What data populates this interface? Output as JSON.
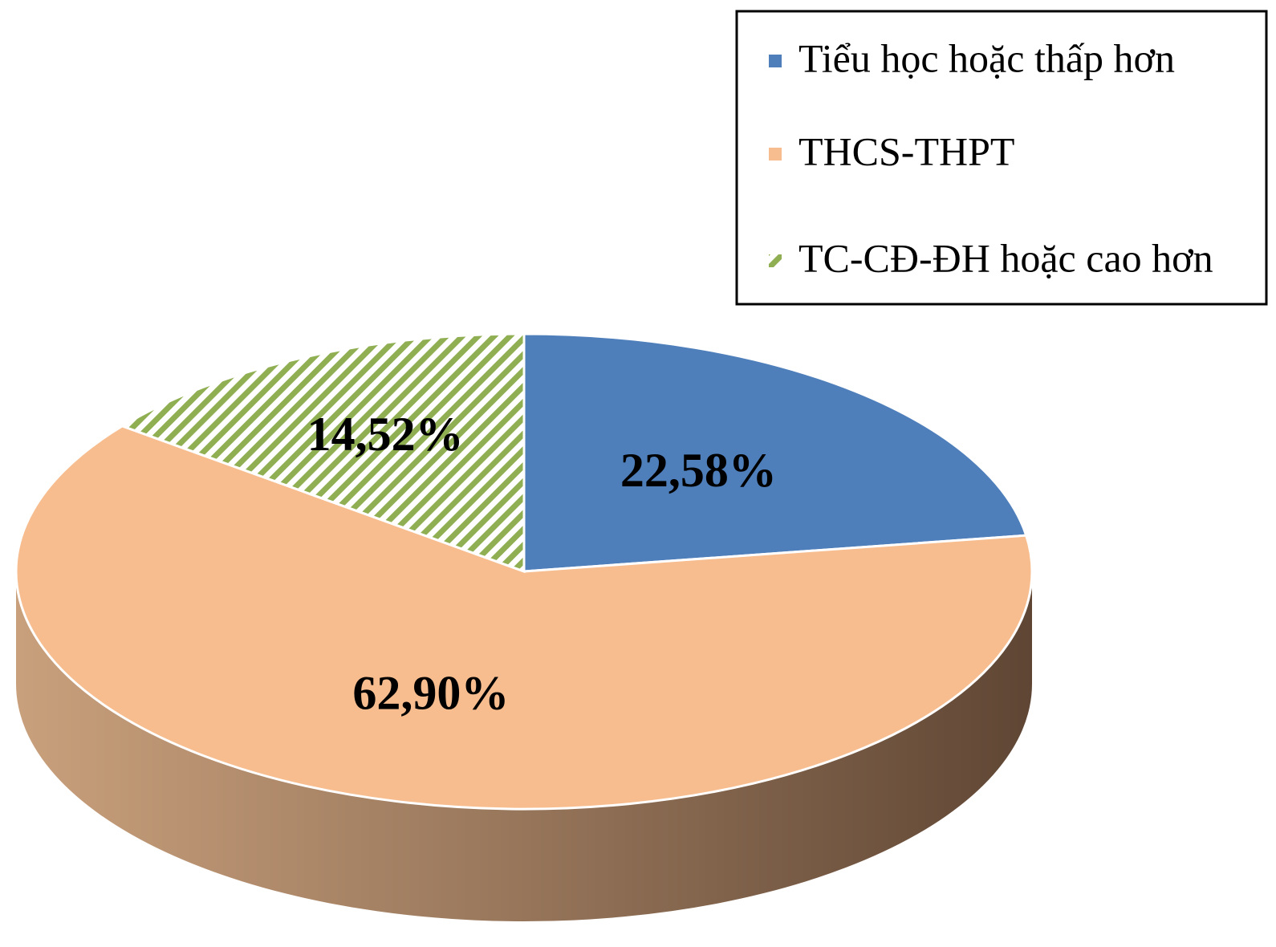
{
  "chart_data": {
    "type": "pie",
    "style": "3d",
    "title": "",
    "legend_position": "top-right",
    "slices": [
      {
        "label": "Tiểu học hoặc thấp hơn",
        "value": 22.58,
        "display": "22,58%",
        "color": "#4e7fbb",
        "pattern": "solid"
      },
      {
        "label": "THCS-THPT",
        "value": 62.9,
        "display": "62,90%",
        "color": "#f7bd8f",
        "pattern": "solid"
      },
      {
        "label": "TC-CĐ-ĐH hoặc cao hơn",
        "value": 14.52,
        "display": "14,52%",
        "color": "#8faf52",
        "pattern": "diagonal-stripes"
      }
    ]
  }
}
